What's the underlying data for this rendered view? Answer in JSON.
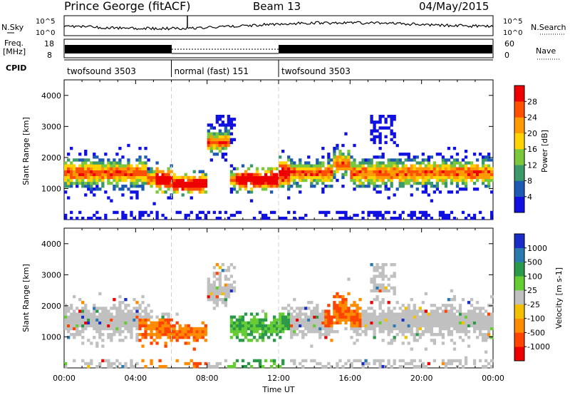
{
  "header": {
    "station": "Prince George (fitACF)",
    "beam": "Beam 13",
    "date": "04/May/2015"
  },
  "summary_panels": {
    "nsky_label": "N.Sky",
    "nsearch_label": "N.Search",
    "noise_ticks": [
      "10^5",
      "10^0"
    ],
    "freq_label_line1": "Freq.",
    "freq_label_line2": "[MHz]",
    "freq_ticks": [
      "18",
      "8"
    ],
    "nave_label": "Nave",
    "nave_ticks": [
      "60",
      "0"
    ],
    "cpid_label": "CPID"
  },
  "cpid_segments": [
    {
      "label": "twofsound 3503",
      "start_hour": 0,
      "end_hour": 6
    },
    {
      "label": "normal (fast) 151",
      "start_hour": 6,
      "end_hour": 12
    },
    {
      "label": "twofsound 3503",
      "start_hour": 12,
      "end_hour": 24
    }
  ],
  "chart_data": [
    {
      "type": "heatmap",
      "quantity": "power",
      "xlabel": "Time UT",
      "ylabel": "Slant Range [km]",
      "xlim": [
        0,
        24
      ],
      "ylim": [
        0,
        4500
      ],
      "yticks": [
        "1000",
        "2000",
        "3000",
        "4000"
      ],
      "colorbar_label": "Power [dB]",
      "colorbar_ticks": [
        "28",
        "24",
        "20",
        "16",
        "12",
        "8",
        "4"
      ],
      "colorbar_colors": [
        "#1010e0",
        "#1e5ab4",
        "#3c9a6a",
        "#7cc83c",
        "#ffd400",
        "#ff9b00",
        "#ff5000",
        "#ee0000"
      ]
    },
    {
      "type": "heatmap",
      "quantity": "velocity",
      "xlabel": "Time UT",
      "ylabel": "Slant Range [km]",
      "xlim": [
        0,
        24
      ],
      "ylim": [
        0,
        4500
      ],
      "yticks": [
        "1000",
        "2000",
        "3000",
        "4000"
      ],
      "colorbar_label": "Velocity [m s-1]",
      "colorbar_ticks": [
        "1000",
        "500",
        "100",
        "25",
        "-25",
        "-100",
        "-500",
        "-1000"
      ],
      "colorbar_colors": [
        "#1a2cc8",
        "#2a7ab0",
        "#2a9a4a",
        "#66cc33",
        "#c0c0c0",
        "#f2c000",
        "#ff8c00",
        "#ff4400",
        "#ee0000"
      ]
    }
  ],
  "xaxis": {
    "ticks": [
      "00:00",
      "04:00",
      "08:00",
      "12:00",
      "16:00",
      "20:00",
      "00:00"
    ],
    "label": "Time UT"
  }
}
